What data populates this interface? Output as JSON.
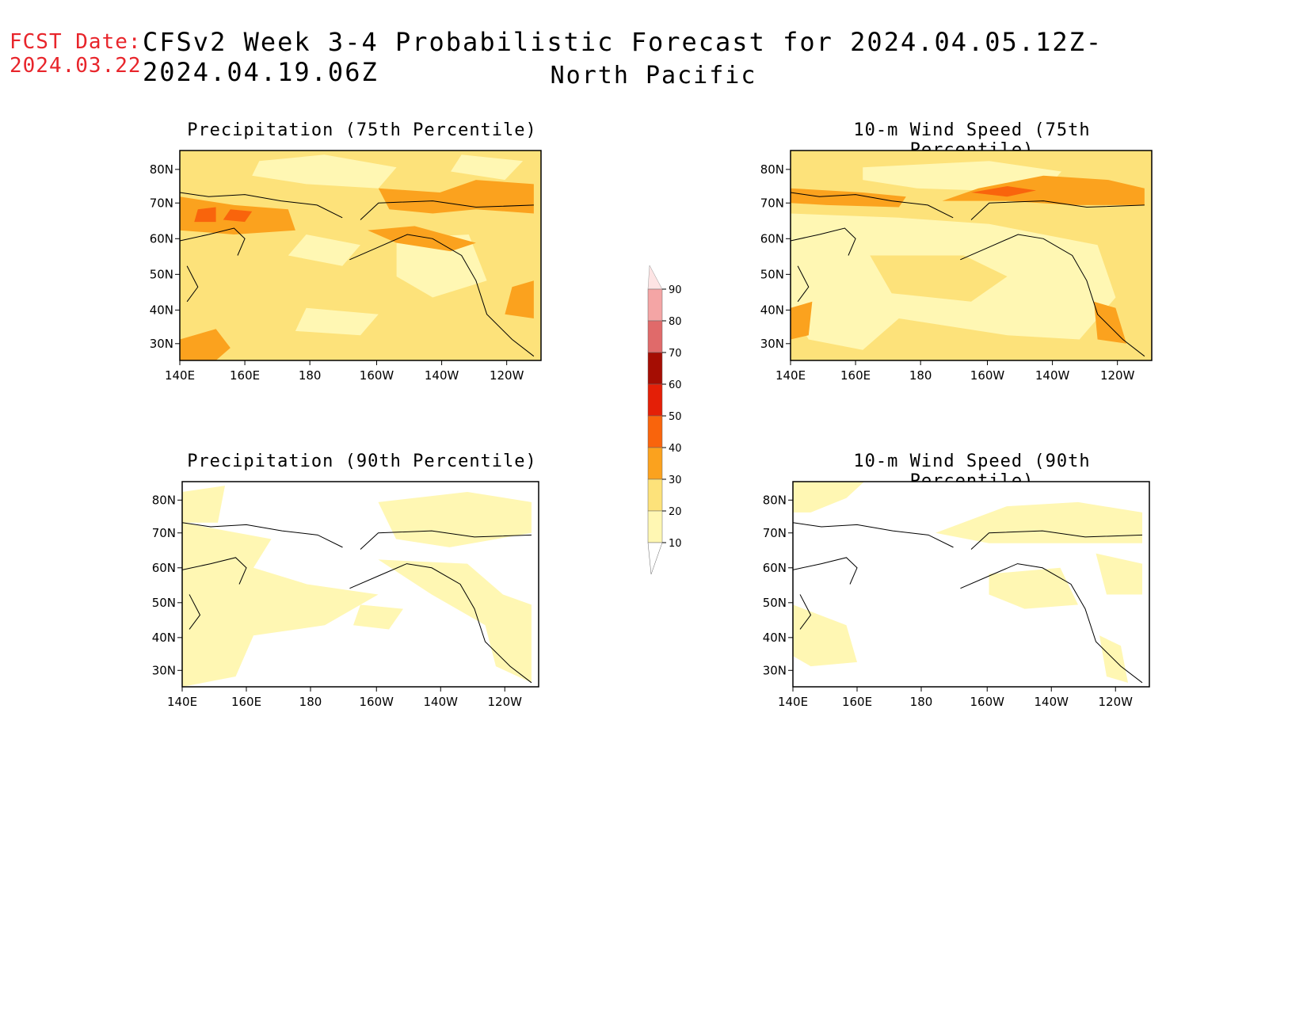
{
  "header": {
    "fcst_label": "FCST Date:",
    "fcst_date": "2024.03.22",
    "title": "CFSv2 Week 3-4 Probabilistic Forecast for 2024.04.05.12Z-2024.04.19.06Z",
    "region": "North Pacific"
  },
  "panels": [
    {
      "id": "precip75",
      "title": "Precipitation (75th Percentile)"
    },
    {
      "id": "wind75",
      "title": "10-m Wind Speed (75th Percentile)"
    },
    {
      "id": "precip90",
      "title": "Precipitation (90th Percentile)"
    },
    {
      "id": "wind90",
      "title": "10-m Wind Speed (90th Percentile)"
    }
  ],
  "axes": {
    "lat_labels": [
      "80N",
      "70N",
      "60N",
      "50N",
      "40N",
      "30N"
    ],
    "lon_labels": [
      "140E",
      "160E",
      "180",
      "160W",
      "140W",
      "120W"
    ]
  },
  "colorbar": {
    "levels": [
      "10",
      "20",
      "30",
      "40",
      "50",
      "60",
      "70",
      "80",
      "90"
    ],
    "colors": [
      "#fff7b3",
      "#fde27a",
      "#fba21e",
      "#f9640c",
      "#e41f07",
      "#a50d03",
      "#e06a6a",
      "#f4a5a5",
      "#fde4e4"
    ]
  },
  "colors": {
    "fcst_red": "#e8252b",
    "c10": "#fff7b3",
    "c20": "#fde27a",
    "c30": "#fba21e",
    "c40": "#f9640c",
    "c50": "#e41f07"
  }
}
